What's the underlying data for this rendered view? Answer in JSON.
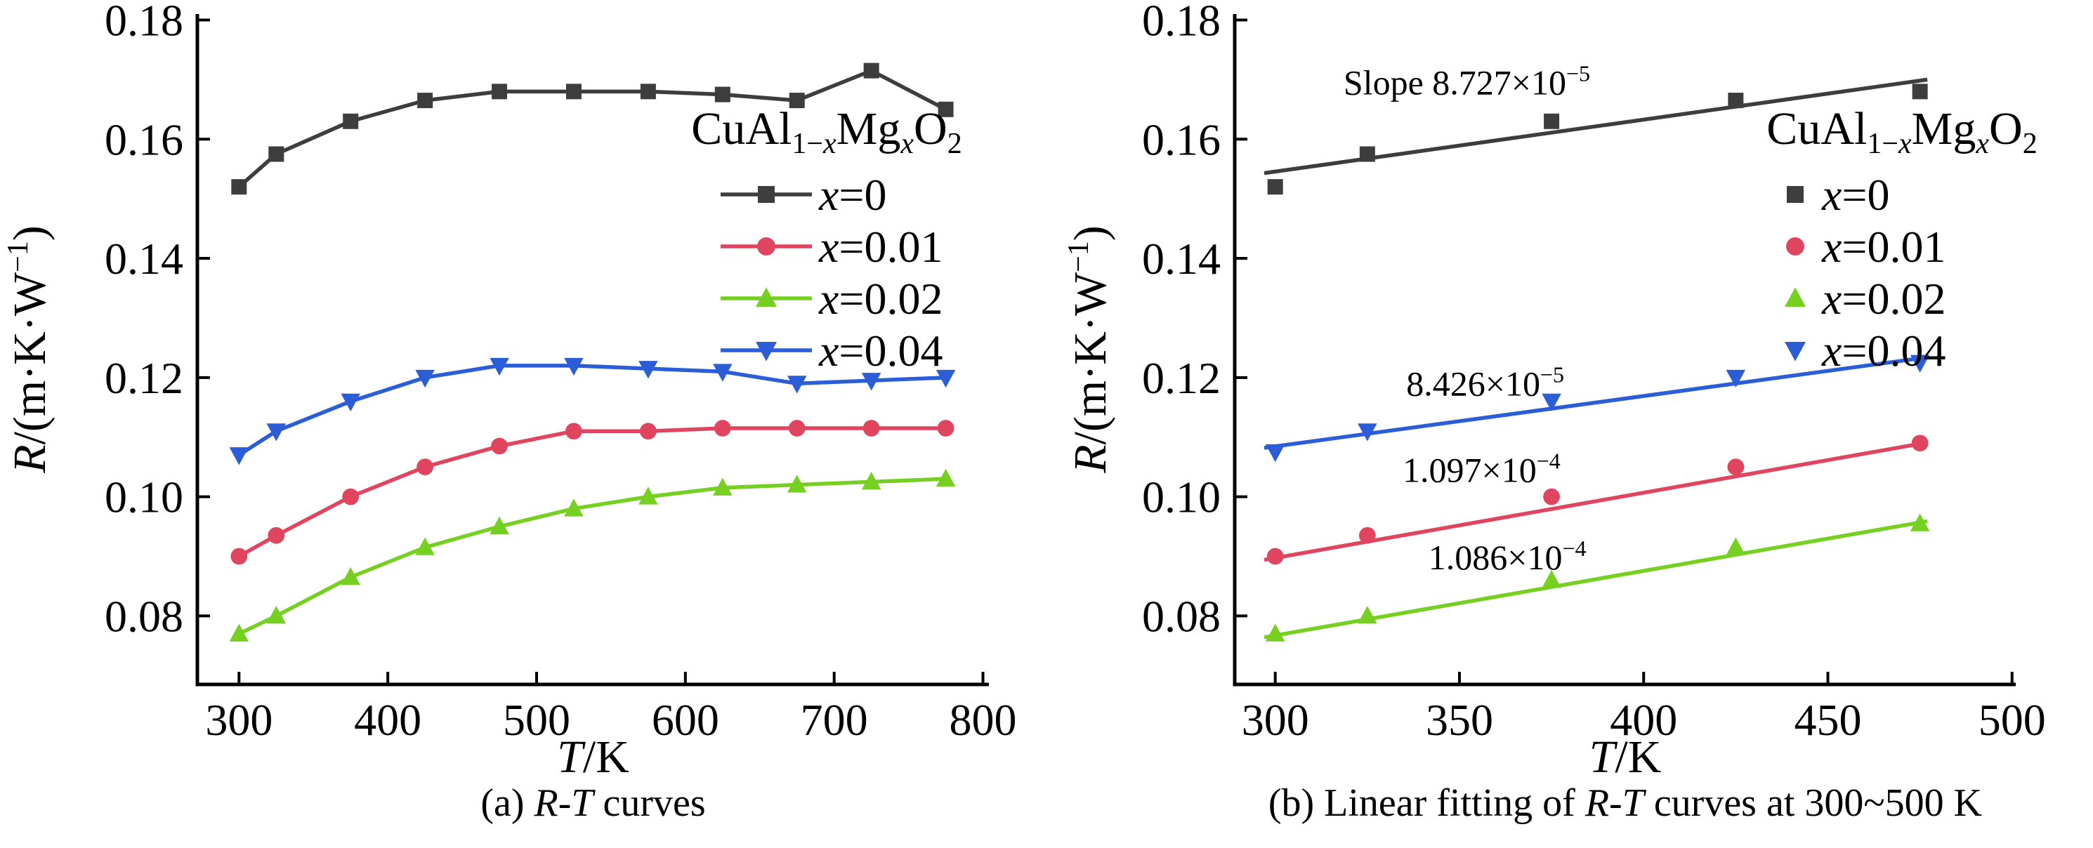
{
  "figure": {
    "background": "#ffffff"
  },
  "captions": {
    "a": {
      "pre": "(a) ",
      "italic": "R-T",
      "post": " curves"
    },
    "b": {
      "pre": "(b) Linear fitting of ",
      "italic": "R-T",
      "post": " curves at 300~500 K"
    }
  },
  "chart_data": [
    {
      "panel": "a",
      "type": "line",
      "title": "",
      "xlabel": "T/K",
      "xlabel_parts": [
        {
          "t": "T",
          "i": true
        },
        {
          "t": "/K"
        }
      ],
      "ylabel": "R/(m·K·W⁻¹)",
      "ylabel_parts": [
        {
          "t": "R",
          "i": true
        },
        {
          "t": "/(m·K·W"
        },
        {
          "t": "−1",
          "sup": true
        },
        {
          "t": ")"
        }
      ],
      "xlim": [
        272,
        804
      ],
      "ylim": [
        0.0685,
        0.181
      ],
      "xticks": [
        300,
        400,
        500,
        600,
        700,
        800
      ],
      "yticks": [
        0.08,
        0.1,
        0.12,
        0.14,
        0.16,
        0.18
      ],
      "ytick_decimals": 2,
      "grid": false,
      "legend_position": "upper right",
      "legend_title": "CuAl1−xMgxO2",
      "legend_title_parts": [
        {
          "t": "CuAl"
        },
        {
          "t": "1−",
          "sub": true
        },
        {
          "t": "x",
          "sub": true,
          "i": true
        },
        {
          "t": "Mg"
        },
        {
          "t": "x",
          "sub": true,
          "i": true
        },
        {
          "t": "O"
        },
        {
          "t": "2",
          "sub": true
        }
      ],
      "x": [
        300,
        325,
        375,
        425,
        475,
        525,
        575,
        625,
        675,
        725,
        775
      ],
      "series": [
        {
          "name": "x=0",
          "color": "#3d3d3d",
          "marker": "square",
          "values": [
            0.152,
            0.1575,
            0.163,
            0.1665,
            0.168,
            0.168,
            0.168,
            0.1675,
            0.1665,
            0.1715,
            0.165
          ]
        },
        {
          "name": "x=0.01",
          "color": "#e0455f",
          "marker": "circle",
          "values": [
            0.09,
            0.0935,
            0.1,
            0.105,
            0.1085,
            0.111,
            0.111,
            0.1115,
            0.1115,
            0.1115,
            0.1115
          ]
        },
        {
          "name": "x=0.02",
          "color": "#76d021",
          "marker": "triangle-up",
          "values": [
            0.077,
            0.08,
            0.0865,
            0.0915,
            0.095,
            0.098,
            0.1,
            0.1015,
            0.102,
            0.1025,
            0.103
          ]
        },
        {
          "name": "x=0.04",
          "color": "#2b5dd7",
          "marker": "triangle-down",
          "values": [
            0.107,
            0.111,
            0.116,
            0.12,
            0.122,
            0.122,
            0.1215,
            0.121,
            0.119,
            0.1195,
            0.12
          ]
        }
      ]
    },
    {
      "panel": "b",
      "type": "scatter",
      "title": "",
      "xlabel": "T/K",
      "xlabel_parts": [
        {
          "t": "T",
          "i": true
        },
        {
          "t": "/K"
        }
      ],
      "ylabel": "R/(m·K·W⁻¹)",
      "ylabel_parts": [
        {
          "t": "R",
          "i": true
        },
        {
          "t": "/(m·K·W"
        },
        {
          "t": "−1",
          "sup": true
        },
        {
          "t": ")"
        }
      ],
      "xlim": [
        289,
        501
      ],
      "ylim": [
        0.0685,
        0.181
      ],
      "xticks": [
        300,
        350,
        400,
        450,
        500
      ],
      "yticks": [
        0.08,
        0.1,
        0.12,
        0.14,
        0.16,
        0.18
      ],
      "ytick_decimals": 2,
      "grid": false,
      "legend_position": "upper right",
      "legend_title": "CuAl1−xMgxO2",
      "legend_title_parts": [
        {
          "t": "CuAl"
        },
        {
          "t": "1−",
          "sub": true
        },
        {
          "t": "x",
          "sub": true,
          "i": true
        },
        {
          "t": "Mg"
        },
        {
          "t": "x",
          "sub": true,
          "i": true
        },
        {
          "t": "O"
        },
        {
          "t": "2",
          "sub": true
        }
      ],
      "x": [
        300,
        325,
        375,
        425,
        475
      ],
      "series": [
        {
          "name": "x=0",
          "color": "#3d3d3d",
          "marker": "square",
          "values": [
            0.152,
            0.1575,
            0.163,
            0.1665,
            0.168
          ],
          "fit": {
            "x1": 297,
            "y1": 0.1543,
            "x2": 477,
            "y2": 0.17,
            "slope": "8.727×10⁻⁵"
          },
          "annotation": {
            "x": 352,
            "y": 0.1675,
            "text": "Slope 8.727×10⁻⁵",
            "parts": [
              {
                "t": "Slope 8.727×10"
              },
              {
                "t": "−5",
                "sup": true
              }
            ]
          }
        },
        {
          "name": "x=0.01",
          "color": "#e0455f",
          "marker": "circle",
          "values": [
            0.09,
            0.0935,
            0.1,
            0.105,
            0.109
          ],
          "fit": {
            "x1": 297,
            "y1": 0.0894,
            "x2": 477,
            "y2": 0.1091,
            "slope": "1.097×10⁻⁴"
          },
          "annotation": {
            "x": 356,
            "y": 0.1025,
            "text": "1.097×10⁻⁴",
            "parts": [
              {
                "t": "1.097×10"
              },
              {
                "t": "−4",
                "sup": true
              }
            ]
          }
        },
        {
          "name": "x=0.02",
          "color": "#76d021",
          "marker": "triangle-up",
          "values": [
            0.077,
            0.08,
            0.086,
            0.0915,
            0.0955
          ],
          "fit": {
            "x1": 297,
            "y1": 0.0764,
            "x2": 477,
            "y2": 0.0959,
            "slope": "1.086×10⁻⁴"
          },
          "annotation": {
            "x": 363,
            "y": 0.0878,
            "text": "1.086×10⁻⁴",
            "parts": [
              {
                "t": "1.086×10"
              },
              {
                "t": "−4",
                "sup": true
              }
            ]
          }
        },
        {
          "name": "x=0.04",
          "color": "#2b5dd7",
          "marker": "triangle-down",
          "values": [
            0.1075,
            0.111,
            0.116,
            0.12,
            0.1225
          ],
          "fit": {
            "x1": 297,
            "y1": 0.1082,
            "x2": 477,
            "y2": 0.1234,
            "slope": "8.426×10⁻⁵"
          },
          "annotation": {
            "x": 357,
            "y": 0.117,
            "text": "8.426×10⁻⁵",
            "parts": [
              {
                "t": "8.426×10"
              },
              {
                "t": "−5",
                "sup": true
              }
            ]
          }
        }
      ]
    }
  ]
}
